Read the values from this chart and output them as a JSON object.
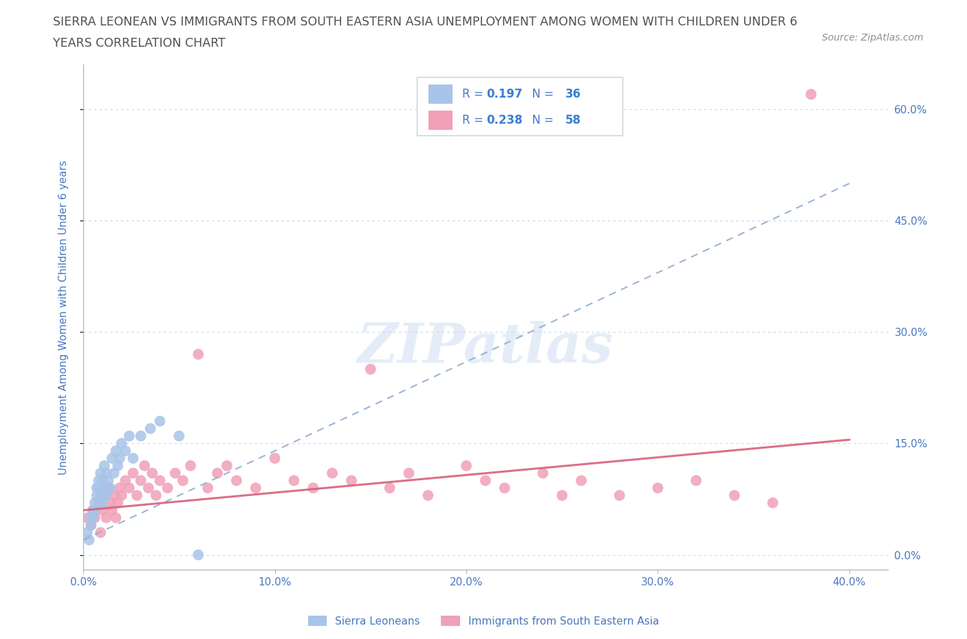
{
  "title_line1": "SIERRA LEONEAN VS IMMIGRANTS FROM SOUTH EASTERN ASIA UNEMPLOYMENT AMONG WOMEN WITH CHILDREN UNDER 6",
  "title_line2": "YEARS CORRELATION CHART",
  "source": "Source: ZipAtlas.com",
  "ylabel": "Unemployment Among Women with Children Under 6 years",
  "xlim": [
    0.0,
    0.42
  ],
  "ylim": [
    -0.02,
    0.66
  ],
  "ytick_labels": [
    "0.0%",
    "15.0%",
    "30.0%",
    "45.0%",
    "60.0%"
  ],
  "ytick_values": [
    0.0,
    0.15,
    0.3,
    0.45,
    0.6
  ],
  "xtick_labels": [
    "0.0%",
    "10.0%",
    "20.0%",
    "30.0%",
    "40.0%"
  ],
  "xtick_values": [
    0.0,
    0.1,
    0.2,
    0.3,
    0.4
  ],
  "legend_R1": "0.197",
  "legend_N1": "36",
  "legend_R2": "0.238",
  "legend_N2": "58",
  "blue_color": "#a8c4e8",
  "pink_color": "#f0a0b8",
  "trend_blue_color": "#90acd0",
  "trend_pink_color": "#d8607a",
  "label_color": "#4878c0",
  "text_color": "#505050",
  "background_color": "#ffffff",
  "watermark": "ZIPatlas",
  "sierra_x": [
    0.002,
    0.003,
    0.004,
    0.004,
    0.005,
    0.005,
    0.006,
    0.006,
    0.007,
    0.007,
    0.008,
    0.008,
    0.009,
    0.009,
    0.01,
    0.01,
    0.011,
    0.011,
    0.012,
    0.012,
    0.013,
    0.014,
    0.015,
    0.016,
    0.017,
    0.018,
    0.019,
    0.02,
    0.022,
    0.024,
    0.026,
    0.03,
    0.035,
    0.04,
    0.05,
    0.06
  ],
  "sierra_y": [
    0.03,
    0.02,
    0.05,
    0.04,
    0.06,
    0.05,
    0.07,
    0.06,
    0.09,
    0.08,
    0.1,
    0.09,
    0.08,
    0.11,
    0.07,
    0.1,
    0.09,
    0.12,
    0.08,
    0.11,
    0.1,
    0.09,
    0.13,
    0.11,
    0.14,
    0.12,
    0.13,
    0.15,
    0.14,
    0.16,
    0.13,
    0.16,
    0.17,
    0.18,
    0.16,
    0.0
  ],
  "sea_x": [
    0.002,
    0.004,
    0.005,
    0.006,
    0.008,
    0.009,
    0.01,
    0.011,
    0.012,
    0.013,
    0.014,
    0.015,
    0.016,
    0.017,
    0.018,
    0.019,
    0.02,
    0.022,
    0.024,
    0.026,
    0.028,
    0.03,
    0.032,
    0.034,
    0.036,
    0.038,
    0.04,
    0.044,
    0.048,
    0.052,
    0.056,
    0.06,
    0.065,
    0.07,
    0.075,
    0.08,
    0.09,
    0.1,
    0.11,
    0.12,
    0.13,
    0.14,
    0.15,
    0.16,
    0.17,
    0.18,
    0.2,
    0.21,
    0.22,
    0.24,
    0.25,
    0.26,
    0.28,
    0.3,
    0.32,
    0.34,
    0.36,
    0.38
  ],
  "sea_y": [
    0.05,
    0.04,
    0.06,
    0.05,
    0.07,
    0.03,
    0.06,
    0.08,
    0.05,
    0.09,
    0.07,
    0.06,
    0.08,
    0.05,
    0.07,
    0.09,
    0.08,
    0.1,
    0.09,
    0.11,
    0.08,
    0.1,
    0.12,
    0.09,
    0.11,
    0.08,
    0.1,
    0.09,
    0.11,
    0.1,
    0.12,
    0.27,
    0.09,
    0.11,
    0.12,
    0.1,
    0.09,
    0.13,
    0.1,
    0.09,
    0.11,
    0.1,
    0.25,
    0.09,
    0.11,
    0.08,
    0.12,
    0.1,
    0.09,
    0.11,
    0.08,
    0.1,
    0.08,
    0.09,
    0.1,
    0.08,
    0.07,
    0.62
  ],
  "blue_trend_x0": 0.0,
  "blue_trend_x1": 0.4,
  "blue_trend_y0": 0.02,
  "blue_trend_y1": 0.5,
  "pink_trend_x0": 0.0,
  "pink_trend_x1": 0.4,
  "pink_trend_y0": 0.06,
  "pink_trend_y1": 0.155
}
